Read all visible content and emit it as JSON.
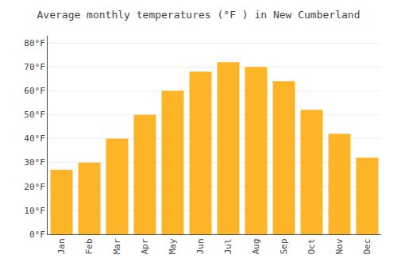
{
  "chart_data": {
    "type": "bar",
    "title": "Average monthly temperatures (°F ) in New Cumberland",
    "categories": [
      "Jan",
      "Feb",
      "Mar",
      "Apr",
      "May",
      "Jun",
      "Jul",
      "Aug",
      "Sep",
      "Oct",
      "Nov",
      "Dec"
    ],
    "values": [
      27,
      30,
      40,
      50,
      60,
      68,
      72,
      70,
      64,
      52,
      42,
      32
    ],
    "color": "#FDB527",
    "ylim": [
      0,
      83
    ],
    "yticks": [
      {
        "value": 0,
        "label": "0°F"
      },
      {
        "value": 10,
        "label": "10°F"
      },
      {
        "value": 20,
        "label": "20°F"
      },
      {
        "value": 30,
        "label": "30°F"
      },
      {
        "value": 40,
        "label": "40°F"
      },
      {
        "value": 50,
        "label": "50°F"
      },
      {
        "value": 60,
        "label": "60°F"
      },
      {
        "value": 70,
        "label": "70°F"
      },
      {
        "value": 80,
        "label": "80°F"
      }
    ],
    "grid": true
  }
}
